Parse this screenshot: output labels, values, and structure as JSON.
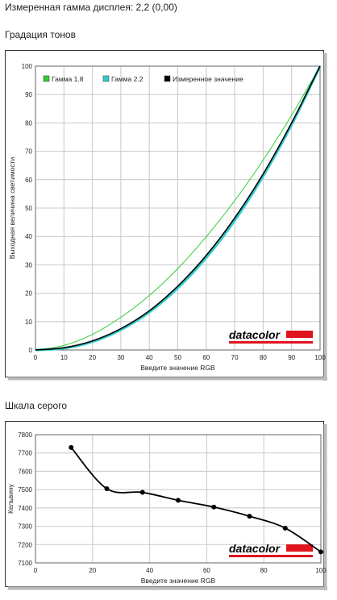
{
  "page": {
    "title": "Измеренная гамма дисплея: 2,2 (0,00)",
    "section1": "Градация тонов",
    "section2": "Шкала серого"
  },
  "colors": {
    "gamma18": "#33cc33",
    "gamma22": "#33cccc",
    "measured": "#000000",
    "brand_red": "#e0141e",
    "grid": "#c8c8c8"
  },
  "chart_data": [
    {
      "type": "line",
      "title": "Градация тонов",
      "xlabel": "Введите значение RGB",
      "ylabel": "Выходная величина светимости",
      "xlim": [
        0,
        100
      ],
      "ylim": [
        0,
        100
      ],
      "xticks": [
        0,
        10,
        20,
        30,
        40,
        50,
        60,
        70,
        80,
        90,
        100
      ],
      "yticks": [
        0,
        10,
        20,
        30,
        40,
        50,
        60,
        70,
        80,
        90,
        100
      ],
      "grid": true,
      "legend": "top-left",
      "logo": "datacolor",
      "series": [
        {
          "name": "Гамма 1.8",
          "color": "#33cc33",
          "x": [
            0,
            10,
            20,
            30,
            40,
            50,
            60,
            70,
            80,
            90,
            100
          ],
          "y": [
            0,
            1.6,
            5.5,
            11.5,
            19.2,
            28.7,
            39.9,
            52.6,
            66.9,
            82.7,
            100
          ]
        },
        {
          "name": "Гамма 2.2",
          "color": "#33cccc",
          "x": [
            0,
            10,
            20,
            30,
            40,
            50,
            60,
            70,
            80,
            90,
            100
          ],
          "y": [
            0,
            0.6,
            2.9,
            7.1,
            13.3,
            21.8,
            32.5,
            45.6,
            61.2,
            79.3,
            100
          ]
        },
        {
          "name": "Измеренное значение",
          "color": "#000000",
          "x": [
            0,
            10,
            20,
            30,
            40,
            50,
            60,
            70,
            80,
            90,
            100
          ],
          "y": [
            0,
            0.8,
            3.2,
            7.5,
            13.8,
            22.5,
            33.3,
            46.5,
            62.0,
            80.0,
            100
          ]
        }
      ]
    },
    {
      "type": "line",
      "title": "Шкала серого",
      "xlabel": "Введите значение RGB",
      "ylabel": "Кельвину",
      "xlim": [
        0,
        100
      ],
      "ylim": [
        7100,
        7800
      ],
      "xticks": [
        0,
        20,
        40,
        60,
        80,
        100
      ],
      "yticks": [
        7100,
        7200,
        7300,
        7400,
        7500,
        7600,
        7700,
        7800
      ],
      "grid": true,
      "logo": "datacolor",
      "series": [
        {
          "color": "#000000",
          "x": [
            12.5,
            25,
            37.5,
            50,
            62.5,
            75,
            87.5,
            100
          ],
          "y": [
            7730,
            7505,
            7485,
            7442,
            7405,
            7355,
            7290,
            7160
          ]
        }
      ]
    }
  ]
}
